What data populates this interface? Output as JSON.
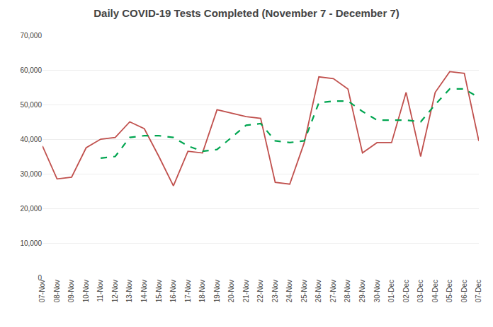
{
  "chart_data": {
    "type": "line",
    "title": "Daily COVID-19 Tests Completed (November 7 - December 7)",
    "categories": [
      "07-Nov",
      "08-Nov",
      "09-Nov",
      "10-Nov",
      "11-Nov",
      "12-Nov",
      "13-Nov",
      "14-Nov",
      "15-Nov",
      "16-Nov",
      "17-Nov",
      "18-Nov",
      "19-Nov",
      "20-Nov",
      "21-Nov",
      "22-Nov",
      "23-Nov",
      "24-Nov",
      "25-Nov",
      "26-Nov",
      "27-Nov",
      "28-Nov",
      "29-Nov",
      "30-Nov",
      "01-Dec",
      "02-Dec",
      "03-Dec",
      "04-Dec",
      "05-Dec",
      "06-Dec",
      "07-Dec"
    ],
    "series": [
      {
        "color": "#C0504D",
        "line_style": "solid",
        "values": [
          38000,
          28500,
          29000,
          37500,
          40000,
          40500,
          45000,
          43000,
          35000,
          26500,
          36500,
          36000,
          48500,
          47500,
          46500,
          46000,
          27500,
          27000,
          39000,
          58000,
          57500,
          54500,
          36000,
          39000,
          39000,
          53500,
          35000,
          53500,
          59500,
          59000,
          39500
        ]
      },
      {
        "color": "#00A550",
        "line_style": "dashed",
        "values": [
          null,
          null,
          null,
          null,
          34500,
          35000,
          40500,
          41000,
          41000,
          40500,
          38000,
          36500,
          37000,
          40500,
          44000,
          44500,
          39500,
          39000,
          39500,
          50500,
          51000,
          51000,
          48000,
          45500,
          45500,
          45500,
          45000,
          50000,
          54500,
          54500,
          52000
        ]
      }
    ],
    "ylim": [
      0,
      70000
    ],
    "yticks": [
      0,
      {
        "value": 10000,
        "label": "10,000"
      },
      {
        "value": 20000,
        "label": "20,000"
      },
      {
        "value": 30000,
        "label": "30,000"
      },
      {
        "value": 40000,
        "label": "40,000"
      },
      {
        "value": 50000,
        "label": "50,000"
      },
      {
        "value": 60000,
        "label": "60,000"
      },
      {
        "value": 70000,
        "label": "70,000"
      }
    ],
    "grid": true
  }
}
